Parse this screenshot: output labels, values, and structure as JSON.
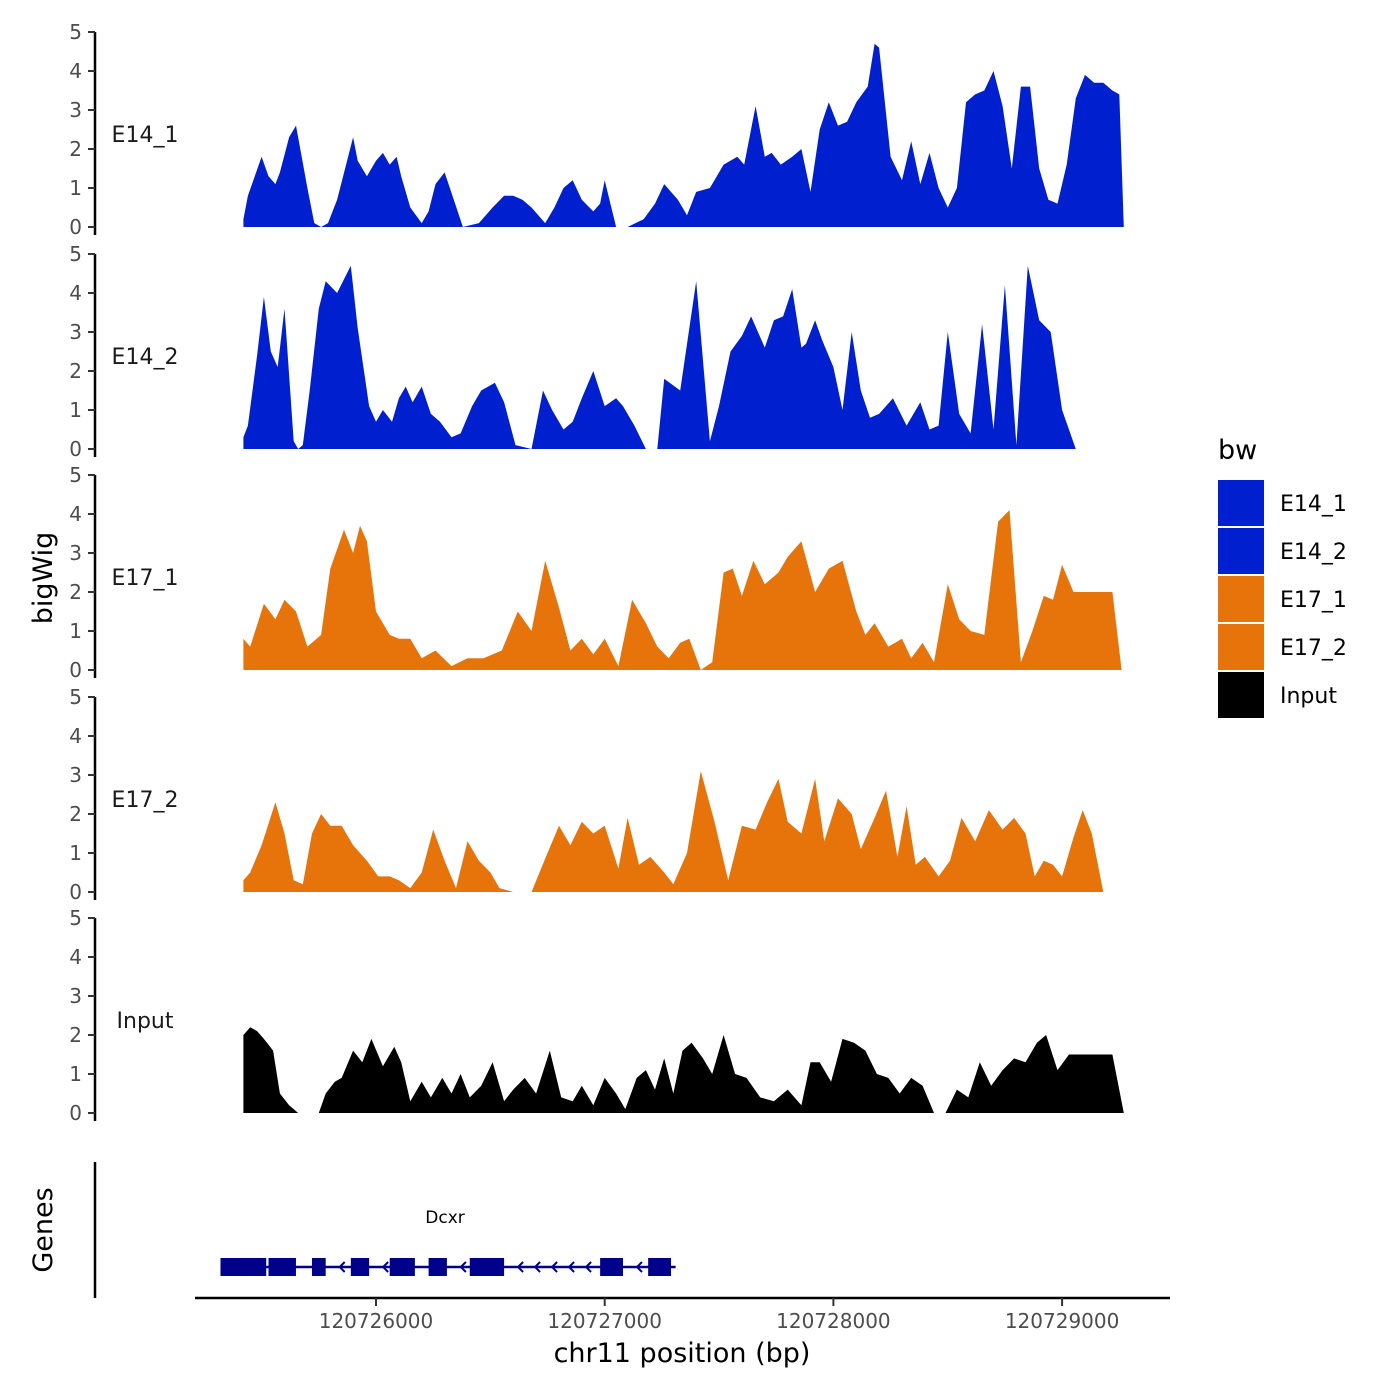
{
  "chart_data": {
    "type": "area",
    "title": "",
    "xlabel": "chr11 position (bp)",
    "ylabel": "bigWig",
    "genes_label": "Genes",
    "xlim": [
      120725350,
      120729480
    ],
    "ylim": [
      0,
      5
    ],
    "xticks": [
      120726000,
      120727000,
      120728000,
      120729000
    ],
    "xtick_labels": [
      "120726000",
      "120727000",
      "120728000",
      "120729000"
    ],
    "yticks": [
      0,
      1,
      2,
      3,
      4,
      5
    ],
    "ytick_labels": [
      "0",
      "1",
      "2",
      "3",
      "4",
      "5"
    ],
    "legend": {
      "title": "bw",
      "position": "right",
      "entries": [
        {
          "label": "E14_1",
          "color": "#0020d0"
        },
        {
          "label": "E14_2",
          "color": "#0020d0"
        },
        {
          "label": "E17_1",
          "color": "#e6740a"
        },
        {
          "label": "E17_2",
          "color": "#e6740a"
        },
        {
          "label": "Input",
          "color": "#000000"
        }
      ]
    },
    "series": [
      {
        "name": "E14_1",
        "color": "#0020d0",
        "x": [
          120725420,
          120725440,
          120725500,
          120725530,
          120725560,
          120725580,
          120725620,
          120725650,
          120725700,
          120725730,
          120725760,
          120725790,
          120725830,
          120725900,
          120725920,
          120725960,
          120726000,
          120726030,
          120726060,
          120726090,
          120726110,
          120726150,
          120726200,
          120726230,
          120726260,
          120726300,
          120726340,
          120726380,
          120726450,
          120726510,
          120726560,
          120726600,
          120726640,
          120726680,
          120726740,
          120726780,
          120726820,
          120726860,
          120726900,
          120726950,
          120726980,
          120727000,
          120727050,
          120727100,
          120727170,
          120727220,
          120727260,
          120727320,
          120727360,
          120727400,
          120727460,
          120727520,
          120727580,
          120727610,
          120727660,
          120727700,
          120727730,
          120727770,
          120727820,
          120727860,
          120727900,
          120727940,
          120727980,
          120728020,
          120728060,
          120728100,
          120728150,
          120728180,
          120728200,
          120728250,
          120728300,
          120728340,
          120728380,
          120728420,
          120728460,
          120728500,
          120728540,
          120728580,
          120728620,
          120728660,
          120728700,
          120728740,
          120728780,
          120728820,
          120728860,
          120728900,
          120728940,
          120728980,
          120729020,
          120729060,
          120729100,
          120729140,
          120729180,
          120729220,
          120729250,
          120729270
        ],
        "values": [
          0.2,
          0.8,
          1.8,
          1.3,
          1.1,
          1.4,
          2.3,
          2.6,
          1.0,
          0.1,
          0.0,
          0.1,
          0.7,
          2.3,
          1.7,
          1.3,
          1.7,
          1.9,
          1.6,
          1.8,
          1.3,
          0.5,
          0.1,
          0.4,
          1.1,
          1.4,
          0.7,
          0.0,
          0.1,
          0.5,
          0.8,
          0.8,
          0.7,
          0.5,
          0.1,
          0.5,
          1.0,
          1.2,
          0.7,
          0.4,
          0.6,
          1.2,
          0.0,
          0.0,
          0.2,
          0.6,
          1.1,
          0.7,
          0.3,
          0.9,
          1.0,
          1.6,
          1.8,
          1.6,
          3.1,
          1.8,
          1.9,
          1.6,
          1.8,
          2.0,
          0.9,
          2.5,
          3.2,
          2.6,
          2.7,
          3.2,
          3.6,
          4.7,
          4.6,
          1.8,
          1.2,
          2.2,
          1.1,
          1.9,
          1.0,
          0.5,
          1.0,
          3.2,
          3.4,
          3.5,
          4.0,
          3.1,
          1.5,
          3.6,
          3.6,
          1.5,
          0.7,
          0.6,
          1.6,
          3.3,
          3.9,
          3.7,
          3.7,
          3.5,
          3.4,
          0.0
        ]
      },
      {
        "name": "E14_2",
        "color": "#0020d0",
        "x": [
          120725420,
          120725440,
          120725480,
          120725510,
          120725540,
          120725570,
          120725600,
          120725640,
          120725660,
          120725680,
          120725710,
          120725750,
          120725780,
          120725830,
          120725890,
          120725920,
          120725970,
          120726000,
          120726030,
          120726070,
          120726100,
          120726130,
          120726160,
          120726200,
          120726240,
          120726280,
          120726330,
          120726370,
          120726420,
          120726460,
          120726520,
          120726560,
          120726610,
          120726680,
          120726730,
          120726770,
          120726820,
          120726860,
          120726900,
          120726950,
          120727000,
          120727050,
          120727080,
          120727130,
          120727180,
          120727230,
          120727260,
          120727330,
          120727400,
          120727460,
          120727500,
          120727550,
          120727600,
          120727640,
          120727700,
          120727740,
          120727780,
          120727820,
          120727860,
          120727880,
          120727920,
          120727950,
          120728000,
          120728040,
          120728080,
          120728120,
          120728160,
          120728200,
          120728260,
          120728320,
          120728380,
          120728420,
          120728460,
          120728500,
          120728550,
          120728600,
          120728650,
          120728700,
          120728750,
          120728800,
          120728850,
          120728900,
          120728950,
          120729000,
          120729060,
          120729100,
          120729140,
          120729180,
          120729220,
          120729260
        ],
        "values": [
          0.3,
          0.6,
          2.4,
          3.9,
          2.5,
          2.1,
          3.6,
          0.2,
          0.0,
          0.1,
          1.5,
          3.6,
          4.3,
          4.0,
          4.7,
          3.1,
          1.1,
          0.7,
          1.0,
          0.7,
          1.3,
          1.6,
          1.2,
          1.6,
          0.9,
          0.7,
          0.3,
          0.4,
          1.1,
          1.5,
          1.7,
          1.2,
          0.1,
          0.0,
          1.5,
          1.0,
          0.5,
          0.7,
          1.3,
          2.0,
          1.1,
          1.3,
          1.1,
          0.6,
          0.0,
          0.0,
          1.8,
          1.5,
          4.3,
          0.2,
          1.1,
          2.5,
          2.9,
          3.4,
          2.6,
          3.3,
          3.4,
          4.1,
          2.6,
          2.7,
          3.3,
          2.8,
          2.1,
          1.0,
          3.0,
          1.5,
          0.8,
          0.9,
          1.3,
          0.6,
          1.2,
          0.5,
          0.6,
          3.0,
          0.9,
          0.4,
          3.2,
          0.5,
          4.2,
          0.1,
          4.7,
          3.3,
          3.0,
          1.0,
          0.0,
          0.0,
          0.0,
          0.0,
          0.0,
          0.0
        ]
      },
      {
        "name": "E17_1",
        "color": "#e6740a",
        "x": [
          120725420,
          120725450,
          120725510,
          120725560,
          120725600,
          120725650,
          120725700,
          120725760,
          120725800,
          120725860,
          120725900,
          120725930,
          120725960,
          120726000,
          120726060,
          120726100,
          120726150,
          120726200,
          120726260,
          120726330,
          120726400,
          120726470,
          120726550,
          120726620,
          120726680,
          120726740,
          120726800,
          120726850,
          120726900,
          120726950,
          120727000,
          120727060,
          120727120,
          120727180,
          120727230,
          120727280,
          120727330,
          120727370,
          120727420,
          120727470,
          120727520,
          120727560,
          120727600,
          120727650,
          120727700,
          120727760,
          120727800,
          120727860,
          120727920,
          120727980,
          120728040,
          120728100,
          120728140,
          120728180,
          120728240,
          120728300,
          120728340,
          120728390,
          120728440,
          120728500,
          120728550,
          120728600,
          120728660,
          120728720,
          120728770,
          120728820,
          120728870,
          120728920,
          120728960,
          120729000,
          120729050,
          120729100,
          120729140,
          120729180,
          120729220,
          120729260
        ],
        "values": [
          0.8,
          0.6,
          1.7,
          1.3,
          1.8,
          1.5,
          0.6,
          0.9,
          2.6,
          3.6,
          3.0,
          3.7,
          3.3,
          1.5,
          0.9,
          0.8,
          0.8,
          0.3,
          0.5,
          0.1,
          0.3,
          0.3,
          0.5,
          1.5,
          1.0,
          2.8,
          1.6,
          0.5,
          0.8,
          0.4,
          0.8,
          0.1,
          1.8,
          1.2,
          0.6,
          0.3,
          0.7,
          0.8,
          0.0,
          0.2,
          2.5,
          2.6,
          1.9,
          2.8,
          2.2,
          2.5,
          2.9,
          3.3,
          2.0,
          2.6,
          2.8,
          1.5,
          0.9,
          1.2,
          0.6,
          0.8,
          0.3,
          0.7,
          0.2,
          2.2,
          1.3,
          1.0,
          0.9,
          3.8,
          4.1,
          0.2,
          1.0,
          1.9,
          1.8,
          2.7,
          2.0,
          2.0,
          2.0,
          2.0,
          2.0,
          0.0
        ]
      },
      {
        "name": "E17_2",
        "color": "#e6740a",
        "x": [
          120725420,
          120725450,
          120725500,
          120725560,
          120725600,
          120725640,
          120725680,
          120725720,
          120725760,
          120725800,
          120725850,
          120725900,
          120725960,
          120726010,
          120726060,
          120726100,
          120726150,
          120726200,
          120726250,
          120726300,
          120726350,
          120726400,
          120726450,
          120726500,
          120726540,
          120726600,
          120726630,
          120726680,
          120726750,
          120726800,
          120726850,
          120726900,
          120726950,
          120727000,
          120727060,
          120727100,
          120727150,
          120727200,
          120727260,
          120727300,
          120727360,
          120727420,
          120727480,
          120727540,
          120727600,
          120727660,
          120727710,
          120727760,
          120727800,
          120727860,
          120727920,
          120727960,
          120728020,
          120728080,
          120728120,
          120728180,
          120728230,
          120728280,
          120728320,
          120728360,
          120728400,
          120728460,
          120728510,
          120728560,
          120728620,
          120728680,
          120728740,
          120728790,
          120728840,
          120728880,
          120728920,
          120728960,
          120729000,
          120729050,
          120729090,
          120729130,
          120729180,
          120729220,
          120729270
        ],
        "values": [
          0.3,
          0.5,
          1.2,
          2.3,
          1.5,
          0.3,
          0.2,
          1.5,
          2.0,
          1.7,
          1.7,
          1.2,
          0.8,
          0.4,
          0.4,
          0.3,
          0.1,
          0.5,
          1.6,
          0.8,
          0.1,
          1.3,
          0.8,
          0.5,
          0.1,
          0.0,
          0.0,
          0.0,
          1.0,
          1.7,
          1.2,
          1.8,
          1.5,
          1.7,
          0.6,
          1.9,
          0.7,
          0.9,
          0.5,
          0.2,
          1.0,
          3.1,
          1.8,
          0.3,
          1.7,
          1.6,
          2.3,
          2.9,
          1.8,
          1.5,
          2.9,
          1.3,
          2.4,
          2.0,
          1.1,
          1.9,
          2.6,
          0.9,
          2.2,
          0.7,
          0.9,
          0.4,
          0.8,
          1.9,
          1.3,
          2.1,
          1.6,
          1.9,
          1.5,
          0.4,
          0.8,
          0.7,
          0.4,
          1.4,
          2.1,
          1.5,
          0.0,
          0.0,
          0.0
        ]
      },
      {
        "name": "Input",
        "color": "#000000",
        "x": [
          120725420,
          120725450,
          120725480,
          120725510,
          120725550,
          120725580,
          120725620,
          120725660,
          120725700,
          120725750,
          120725780,
          120725820,
          120725850,
          120725900,
          120725940,
          120725980,
          120726030,
          120726080,
          120726110,
          120726150,
          120726200,
          120726240,
          120726290,
          120726330,
          120726370,
          120726410,
          120726460,
          120726510,
          120726560,
          120726600,
          120726650,
          120726700,
          120726760,
          120726810,
          120726860,
          120726900,
          120726950,
          120727000,
          120727050,
          120727090,
          120727140,
          120727180,
          120727220,
          120727260,
          120727300,
          120727340,
          120727380,
          120727430,
          120727470,
          120727520,
          120727570,
          120727620,
          120727680,
          120727740,
          120727800,
          120727860,
          120727900,
          120727940,
          120727990,
          120728040,
          120728090,
          120728140,
          120728190,
          120728240,
          120728290,
          120728340,
          120728390,
          120728440,
          120728490,
          120728540,
          120728590,
          120728640,
          120728690,
          120728740,
          120728790,
          120728840,
          120728890,
          120728930,
          120728980,
          120729030,
          120729080,
          120729130,
          120729180,
          120729220,
          120729270
        ],
        "values": [
          2.0,
          2.2,
          2.1,
          1.9,
          1.6,
          0.5,
          0.2,
          0.0,
          0.0,
          0.0,
          0.5,
          0.8,
          0.9,
          1.6,
          1.3,
          1.9,
          1.2,
          1.7,
          1.3,
          0.3,
          0.8,
          0.4,
          0.9,
          0.5,
          1.0,
          0.4,
          0.7,
          1.3,
          0.3,
          0.6,
          0.9,
          0.5,
          1.6,
          0.4,
          0.3,
          0.7,
          0.2,
          0.9,
          0.5,
          0.1,
          0.9,
          1.1,
          0.6,
          1.4,
          0.5,
          1.6,
          1.8,
          1.4,
          1.0,
          2.0,
          1.0,
          0.9,
          0.4,
          0.3,
          0.6,
          0.2,
          1.3,
          1.3,
          0.8,
          1.9,
          1.8,
          1.6,
          1.0,
          0.9,
          0.5,
          0.9,
          0.7,
          0.0,
          0.0,
          0.6,
          0.4,
          1.3,
          0.7,
          1.1,
          1.4,
          1.3,
          1.8,
          2.0,
          1.1,
          1.5,
          1.5,
          1.5,
          1.5,
          1.5,
          0.0
        ]
      }
    ],
    "genes": [
      {
        "name": "Dcxr",
        "start": 120725320,
        "end": 120727310,
        "strand": "-",
        "exons": [
          [
            120725320,
            120725520
          ],
          [
            120725530,
            120725650
          ],
          [
            120725720,
            120725780
          ],
          [
            120725890,
            120725970
          ],
          [
            120726060,
            120726170
          ],
          [
            120726230,
            120726310
          ],
          [
            120726410,
            120726560
          ],
          [
            120726980,
            120727080
          ],
          [
            120727190,
            120727290
          ]
        ]
      }
    ]
  }
}
